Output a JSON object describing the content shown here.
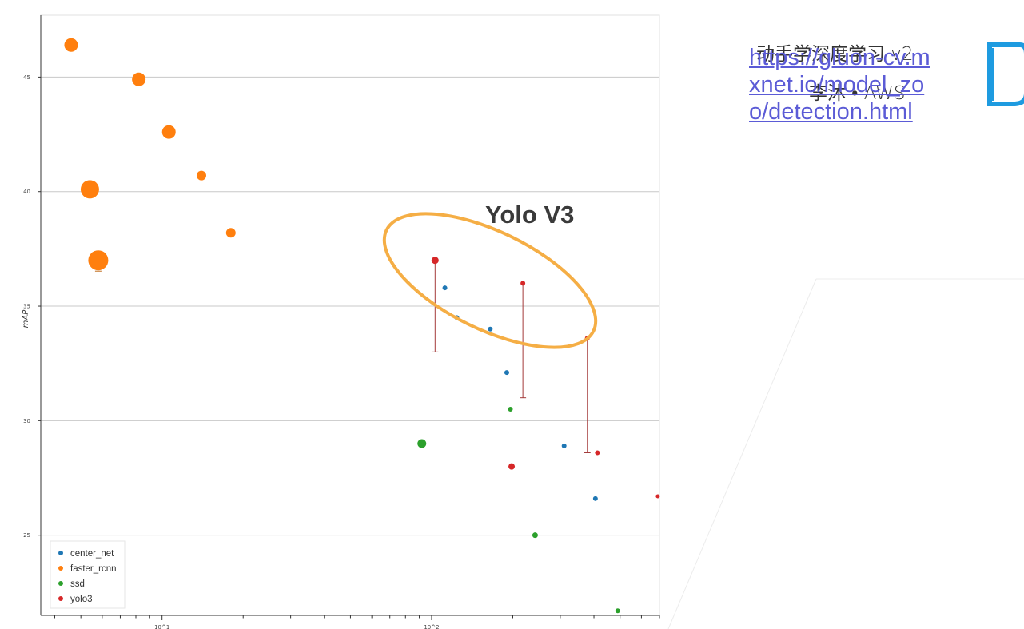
{
  "slide": {
    "title": "动手学深度学习 v2",
    "author": "李沐 • AWS",
    "link": "https://gluon-cv.mxnet.io/model_zoo/detection.html",
    "logo_icon": "d2l-book-icon"
  },
  "chart_data": {
    "type": "scatter",
    "title": "",
    "xlabel": "",
    "ylabel": "mAP",
    "x_scale": "log",
    "x_ticks": [
      {
        "value": 10,
        "label": "10^1"
      },
      {
        "value": 100,
        "label": "10^2"
      }
    ],
    "y_ticks": [
      {
        "value": 25,
        "label": "25"
      },
      {
        "value": 30,
        "label": "30"
      },
      {
        "value": 35,
        "label": "35"
      },
      {
        "value": 40,
        "label": "40"
      },
      {
        "value": 45,
        "label": "45"
      }
    ],
    "xlim": [
      3.55,
      700
    ],
    "ylim": [
      21.5,
      47.7
    ],
    "grid": "horizontal",
    "legend_position": "bottom-left",
    "annotation": {
      "text": "Yolo V3",
      "series": "yolo3",
      "shape": "ellipse",
      "color": "#F5AE45"
    },
    "series": [
      {
        "name": "center_net",
        "color": "#1F77B4",
        "points": [
          {
            "x": 112,
            "y": 35.8,
            "size": 3
          },
          {
            "x": 124,
            "y": 34.5,
            "size": 3
          },
          {
            "x": 165,
            "y": 34.0,
            "size": 3
          },
          {
            "x": 190,
            "y": 32.1,
            "size": 3
          },
          {
            "x": 310,
            "y": 28.9,
            "size": 3
          },
          {
            "x": 405,
            "y": 26.6,
            "size": 3
          }
        ]
      },
      {
        "name": "faster_rcnn",
        "color": "#FF7F0E",
        "points": [
          {
            "x": 4.6,
            "y": 46.4,
            "size": 8.5
          },
          {
            "x": 8.2,
            "y": 44.9,
            "size": 8.5
          },
          {
            "x": 10.6,
            "y": 42.6,
            "size": 8.5
          },
          {
            "x": 14.0,
            "y": 40.7,
            "size": 6
          },
          {
            "x": 5.4,
            "y": 40.1,
            "size": 11.5
          },
          {
            "x": 18.0,
            "y": 38.2,
            "size": 6
          },
          {
            "x": 5.8,
            "y": 37.0,
            "size": 12.5
          }
        ]
      },
      {
        "name": "ssd",
        "color": "#2CA02C",
        "points": [
          {
            "x": 92,
            "y": 29.0,
            "size": 5.5
          },
          {
            "x": 196,
            "y": 30.5,
            "size": 3
          },
          {
            "x": 242,
            "y": 25.0,
            "size": 3.5
          },
          {
            "x": 490,
            "y": 21.7,
            "size": 3
          }
        ]
      },
      {
        "name": "yolo3",
        "color": "#D62728",
        "points": [
          {
            "x": 103,
            "y": 37.0,
            "size": 4.5,
            "err_low": 33.0
          },
          {
            "x": 218,
            "y": 36.0,
            "size": 3,
            "err_low": 31.0
          },
          {
            "x": 378,
            "y": 33.6,
            "size": 3,
            "err_low": 28.6
          },
          {
            "x": 198,
            "y": 28.0,
            "size": 4
          },
          {
            "x": 412,
            "y": 28.6,
            "size": 3
          },
          {
            "x": 690,
            "y": 26.7,
            "size": 2.5
          }
        ]
      }
    ]
  }
}
